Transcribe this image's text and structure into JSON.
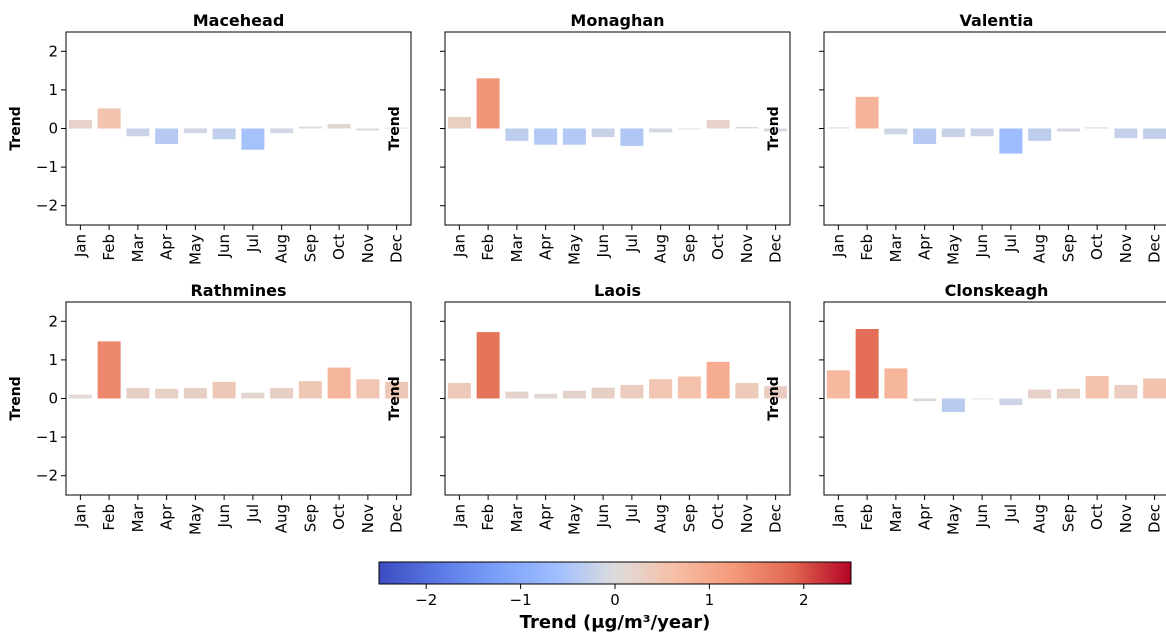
{
  "chart_data": {
    "type": "bar",
    "ylabel": "Trend",
    "ylim": [
      -2.5,
      2.5
    ],
    "yticks": [
      2,
      1,
      0,
      -1,
      -2
    ],
    "ytick_labels": [
      "2",
      "1",
      "0",
      "−1",
      "−2"
    ],
    "categories": [
      "Jan",
      "Feb",
      "Mar",
      "Apr",
      "May",
      "Jun",
      "Jul",
      "Aug",
      "Sep",
      "Oct",
      "Nov",
      "Dec"
    ],
    "colorbar": {
      "title": "Trend (μg/m³/year)",
      "range": [
        -2.5,
        2.5
      ],
      "colormap": "coolwarm",
      "ticks": [
        -2,
        -1,
        0,
        1,
        2
      ],
      "tick_labels": [
        "−2",
        "−1",
        "0",
        "1",
        "2"
      ]
    },
    "panels": [
      {
        "title": "Macehead",
        "values": [
          0.22,
          0.52,
          -0.2,
          -0.4,
          -0.12,
          -0.28,
          -0.55,
          -0.12,
          0.05,
          0.12,
          -0.05,
          0.02
        ]
      },
      {
        "title": "Monaghan",
        "values": [
          0.3,
          1.3,
          -0.32,
          -0.42,
          -0.42,
          -0.22,
          -0.45,
          -0.1,
          0.0,
          0.22,
          0.04,
          -0.08
        ]
      },
      {
        "title": "Valentia",
        "values": [
          0.03,
          0.82,
          -0.15,
          -0.4,
          -0.22,
          -0.2,
          -0.65,
          -0.32,
          -0.08,
          0.03,
          -0.25,
          -0.27
        ]
      },
      {
        "title": "Rathmines",
        "values": [
          0.1,
          1.48,
          0.27,
          0.25,
          0.27,
          0.43,
          0.15,
          0.27,
          0.45,
          0.8,
          0.5,
          0.43
        ]
      },
      {
        "title": "Laois",
        "values": [
          0.4,
          1.72,
          0.18,
          0.12,
          0.2,
          0.28,
          0.35,
          0.5,
          0.57,
          0.95,
          0.4,
          0.32
        ]
      },
      {
        "title": "Clonskeagh",
        "values": [
          0.73,
          1.8,
          0.78,
          -0.07,
          -0.35,
          0.0,
          -0.17,
          0.23,
          0.25,
          0.58,
          0.35,
          0.52
        ]
      }
    ]
  }
}
